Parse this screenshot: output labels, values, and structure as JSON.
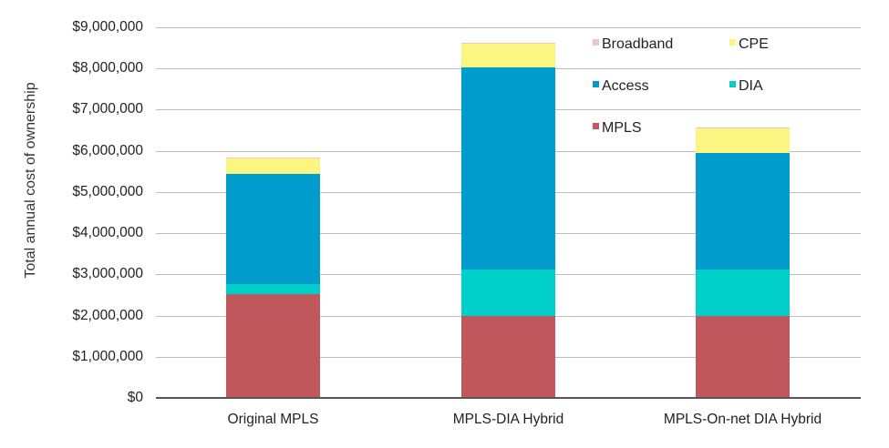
{
  "chart_data": {
    "type": "bar",
    "stacked": true,
    "title": "",
    "xlabel": "",
    "ylabel": "Total annual cost of ownership",
    "ylim": [
      0,
      9000000
    ],
    "yticks": [
      "$0",
      "$1,000,000",
      "$2,000,000",
      "$3,000,000",
      "$4,000,000",
      "$5,000,000",
      "$6,000,000",
      "$7,000,000",
      "$8,000,000",
      "$9,000,000"
    ],
    "grid": true,
    "legend_position": "upper right (inside plot)",
    "categories": [
      "Original MPLS",
      "MPLS-DIA Hybrid",
      "MPLS-On-net DIA Hybrid"
    ],
    "series": [
      {
        "name": "MPLS",
        "color": "#c0575c",
        "values": [
          2530000,
          2000000,
          2000000
        ]
      },
      {
        "name": "DIA",
        "color": "#00cec9",
        "values": [
          230000,
          1120000,
          1120000
        ]
      },
      {
        "name": "Access",
        "color": "#009ccc",
        "values": [
          2680000,
          4900000,
          2830000
        ]
      },
      {
        "name": "CPE",
        "color": "#fbf582",
        "values": [
          370000,
          580000,
          590000
        ]
      },
      {
        "name": "Broadband",
        "color": "#f2c4c4",
        "values": [
          20000,
          20000,
          20000
        ]
      }
    ],
    "totals": [
      5830000,
      8620000,
      6560000
    ]
  },
  "legend": {
    "items": [
      {
        "label": "Broadband",
        "color": "#f2c4c4"
      },
      {
        "label": "CPE",
        "color": "#fbf582"
      },
      {
        "label": "Access",
        "color": "#009ccc"
      },
      {
        "label": "DIA",
        "color": "#00cec9"
      },
      {
        "label": "MPLS",
        "color": "#c0575c"
      }
    ]
  }
}
